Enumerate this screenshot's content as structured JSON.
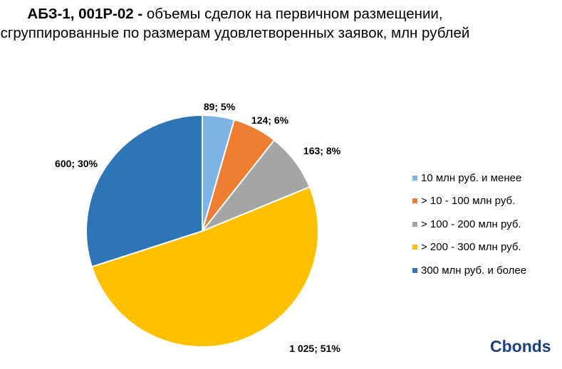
{
  "title": {
    "bold": "АБЗ-1, 001P-02 -",
    "rest": " объемы сделок на первичном размещении, сгруппированные по размерам удовлетворенных заявок, млн рублей"
  },
  "chart_data": {
    "type": "pie",
    "categories": [
      "10 млн руб. и менее",
      "> 10 - 100 млн руб.",
      "> 100 - 200 млн руб.",
      "> 200 - 300 млн руб.",
      "300 млн руб. и более"
    ],
    "values": [
      89,
      124,
      163,
      1025,
      600
    ],
    "percentages": [
      5,
      6,
      8,
      51,
      30
    ],
    "data_labels": [
      "89; 5%",
      "124; 6%",
      "163; 8%",
      "1 025; 51%",
      "600; 30%"
    ],
    "colors": [
      "#7fb2e5",
      "#ed7d31",
      "#a5a5a5",
      "#ffc000",
      "#2e75b6"
    ],
    "legend_position": "right"
  },
  "legend": {
    "items": [
      "10 млн руб. и менее",
      "> 10 - 100 млн руб.",
      "> 100 - 200 млн руб.",
      "> 200 - 300 млн руб.",
      "300 млн руб. и более"
    ]
  },
  "brand": "Cbonds"
}
